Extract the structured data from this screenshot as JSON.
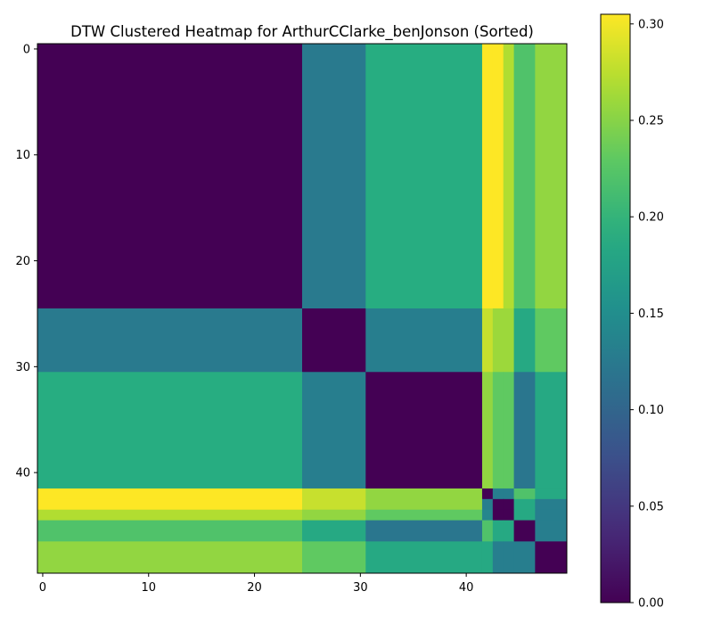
{
  "chart_data": {
    "type": "heatmap",
    "title": "DTW Clustered Heatmap for ArthurCClarke_benJonson (Sorted)",
    "xlabel": "",
    "ylabel": "",
    "n": 50,
    "xticks": [
      0,
      10,
      20,
      30,
      40
    ],
    "yticks": [
      0,
      10,
      20,
      30,
      40
    ],
    "colormap": "viridis",
    "vmin": 0,
    "vmax": 0.305,
    "colorbar_ticks": [
      0.0,
      0.05,
      0.1,
      0.15,
      0.2,
      0.25,
      0.3
    ],
    "colorbar_tick_labels": [
      "0.00",
      "0.05",
      "0.10",
      "0.15",
      "0.20",
      "0.25",
      "0.30"
    ],
    "groups": [
      {
        "start": 0,
        "end": 24
      },
      {
        "start": 25,
        "end": 30
      },
      {
        "start": 31,
        "end": 41
      },
      {
        "start": 42,
        "end": 42
      },
      {
        "start": 43,
        "end": 43
      },
      {
        "start": 44,
        "end": 44
      },
      {
        "start": 45,
        "end": 46
      },
      {
        "start": 47,
        "end": 49
      }
    ],
    "group_matrix": [
      [
        0.0,
        0.125,
        0.19,
        0.305,
        0.305,
        0.27,
        0.22,
        0.255
      ],
      [
        0.125,
        0.0,
        0.13,
        0.28,
        0.26,
        0.26,
        0.185,
        0.23
      ],
      [
        0.19,
        0.13,
        0.0,
        0.255,
        0.23,
        0.23,
        0.12,
        0.185
      ],
      [
        0.305,
        0.28,
        0.255,
        0.0,
        0.13,
        0.13,
        0.22,
        0.185
      ],
      [
        0.305,
        0.28,
        0.255,
        0.13,
        0.0,
        0.0,
        0.185,
        0.13
      ],
      [
        0.27,
        0.255,
        0.23,
        0.14,
        0.0,
        0.0,
        0.185,
        0.13
      ],
      [
        0.22,
        0.185,
        0.12,
        0.22,
        0.185,
        0.185,
        0.0,
        0.13
      ],
      [
        0.255,
        0.23,
        0.185,
        0.185,
        0.13,
        0.13,
        0.13,
        0.0
      ]
    ]
  }
}
